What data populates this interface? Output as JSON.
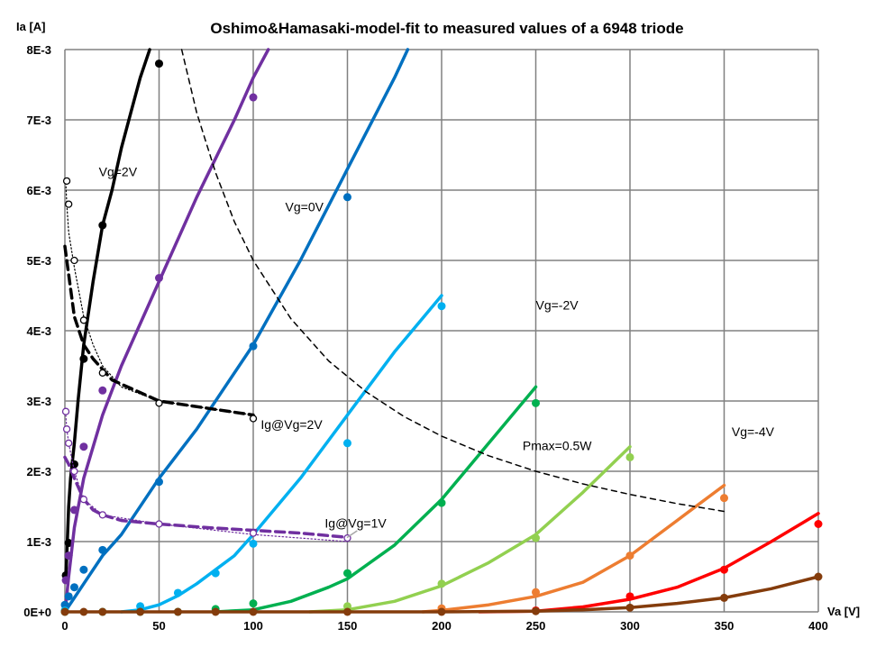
{
  "chart_data": {
    "type": "scatter",
    "title": "Oshimo&Hamasaki-model-fit to measured values of a 6948 triode",
    "xlabel": "Va [V]",
    "ylabel": "Ia [A]",
    "xlim": [
      0,
      400
    ],
    "ylim": [
      0,
      0.008
    ],
    "x_ticks": [
      "0",
      "50",
      "100",
      "150",
      "200",
      "250",
      "300",
      "350",
      "400"
    ],
    "x_tick_values": [
      0,
      50,
      100,
      150,
      200,
      250,
      300,
      350,
      400
    ],
    "y_ticks": [
      "0E+0",
      "1E-3",
      "2E-3",
      "3E-3",
      "4E-3",
      "5E-3",
      "6E-3",
      "7E-3",
      "8E-3"
    ],
    "y_tick_values": [
      0,
      0.001,
      0.002,
      0.003,
      0.004,
      0.005,
      0.006,
      0.007,
      0.008
    ],
    "grid": true,
    "annotations": [
      {
        "text": "Vg=2V",
        "x": 18,
        "y": 0.0062
      },
      {
        "text": "Vg=0V",
        "x": 117,
        "y": 0.0057
      },
      {
        "text": "Vg=-2V",
        "x": 250,
        "y": 0.0043
      },
      {
        "text": "Vg=-4V",
        "x": 354,
        "y": 0.0025
      },
      {
        "text": "Pmax=0.5W",
        "x": 243,
        "y": 0.0023
      },
      {
        "text": "Ig@Vg=2V",
        "x": 104,
        "y": 0.0026
      },
      {
        "text": "Ig@Vg=1V",
        "x": 138,
        "y": 0.0012
      }
    ],
    "series": [
      {
        "color": "#000000",
        "width": 3.5,
        "curve": [
          [
            0.5,
            0.00045
          ],
          [
            1,
            0.0008
          ],
          [
            2,
            0.0015
          ],
          [
            3,
            0.0019
          ],
          [
            5,
            0.0024
          ],
          [
            7,
            0.003
          ],
          [
            10,
            0.0038
          ],
          [
            15,
            0.0047
          ],
          [
            20,
            0.0055
          ],
          [
            25,
            0.006
          ],
          [
            30,
            0.0066
          ],
          [
            35,
            0.0071
          ],
          [
            40,
            0.0076
          ],
          [
            45,
            0.008
          ]
        ],
        "points": [
          [
            0.5,
            0.00052
          ],
          [
            2,
            0.00098
          ],
          [
            5,
            0.0021
          ],
          [
            10,
            0.0036
          ],
          [
            20,
            0.0055
          ],
          [
            50,
            0.0078
          ]
        ]
      },
      {
        "color": "#7030A0",
        "width": 3.5,
        "curve": [
          [
            0.5,
            0.0001
          ],
          [
            2,
            0.0005
          ],
          [
            5,
            0.0012
          ],
          [
            10,
            0.0019
          ],
          [
            20,
            0.0028
          ],
          [
            30,
            0.0035
          ],
          [
            50,
            0.0047
          ],
          [
            70,
            0.0059
          ],
          [
            90,
            0.007
          ],
          [
            100,
            0.0076
          ],
          [
            108,
            0.008
          ]
        ],
        "points": [
          [
            0.5,
            0.00045
          ],
          [
            2,
            0.0008
          ],
          [
            5,
            0.00145
          ],
          [
            10,
            0.00235
          ],
          [
            20,
            0.00315
          ],
          [
            50,
            0.00475
          ],
          [
            100,
            0.00732
          ]
        ]
      },
      {
        "color": "#0070C0",
        "width": 3.5,
        "curve": [
          [
            0,
            0
          ],
          [
            5,
            0.0002
          ],
          [
            10,
            0.0004
          ],
          [
            20,
            0.0008
          ],
          [
            30,
            0.0011
          ],
          [
            50,
            0.0019
          ],
          [
            70,
            0.0026
          ],
          [
            100,
            0.0038
          ],
          [
            125,
            0.005
          ],
          [
            150,
            0.0063
          ],
          [
            175,
            0.0076
          ],
          [
            182,
            0.008
          ]
        ],
        "points": [
          [
            0,
            0.0001
          ],
          [
            2,
            0.00022
          ],
          [
            5,
            0.00035
          ],
          [
            10,
            0.0006
          ],
          [
            20,
            0.00088
          ],
          [
            50,
            0.00185
          ],
          [
            100,
            0.00378
          ],
          [
            150,
            0.0059
          ]
        ]
      },
      {
        "color": "#00B0F0",
        "width": 3.5,
        "curve": [
          [
            30,
            0
          ],
          [
            40,
            3e-05
          ],
          [
            50,
            0.0001
          ],
          [
            60,
            0.00023
          ],
          [
            70,
            0.0004
          ],
          [
            80,
            0.0006
          ],
          [
            90,
            0.0008
          ],
          [
            100,
            0.0011
          ],
          [
            125,
            0.0019
          ],
          [
            150,
            0.0028
          ],
          [
            175,
            0.0037
          ],
          [
            200,
            0.0045
          ]
        ],
        "points": [
          [
            0,
            2e-05
          ],
          [
            40,
            8e-05
          ],
          [
            60,
            0.00027
          ],
          [
            80,
            0.00055
          ],
          [
            100,
            0.00097
          ],
          [
            150,
            0.0024
          ],
          [
            200,
            0.00435
          ]
        ]
      },
      {
        "color": "#00B050",
        "width": 3.5,
        "curve": [
          [
            80,
            0
          ],
          [
            100,
            3e-05
          ],
          [
            120,
            0.00015
          ],
          [
            140,
            0.00035
          ],
          [
            150,
            0.00047
          ],
          [
            175,
            0.00095
          ],
          [
            200,
            0.0016
          ],
          [
            225,
            0.0024
          ],
          [
            250,
            0.0032
          ]
        ],
        "points": [
          [
            0,
            0
          ],
          [
            20,
            0
          ],
          [
            40,
            0
          ],
          [
            60,
            0
          ],
          [
            80,
            4e-05
          ],
          [
            100,
            0.00012
          ],
          [
            150,
            0.00055
          ],
          [
            200,
            0.00155
          ],
          [
            250,
            0.00297
          ]
        ]
      },
      {
        "color": "#92D050",
        "width": 3.5,
        "curve": [
          [
            130,
            0
          ],
          [
            150,
            3e-05
          ],
          [
            175,
            0.00015
          ],
          [
            200,
            0.00037
          ],
          [
            225,
            0.0007
          ],
          [
            250,
            0.0011
          ],
          [
            275,
            0.0017
          ],
          [
            300,
            0.00235
          ]
        ],
        "points": [
          [
            150,
            8e-05
          ],
          [
            200,
            0.0004
          ],
          [
            250,
            0.00105
          ],
          [
            300,
            0.0022
          ]
        ]
      },
      {
        "color": "#ED7D31",
        "width": 3.5,
        "curve": [
          [
            190,
            0
          ],
          [
            200,
            2e-05
          ],
          [
            225,
            0.0001
          ],
          [
            250,
            0.00022
          ],
          [
            275,
            0.00042
          ],
          [
            300,
            0.0008
          ],
          [
            325,
            0.0013
          ],
          [
            350,
            0.0018
          ]
        ],
        "points": [
          [
            200,
            5e-05
          ],
          [
            250,
            0.00028
          ],
          [
            300,
            0.0008
          ],
          [
            350,
            0.00162
          ]
        ]
      },
      {
        "color": "#FF0000",
        "width": 3.5,
        "curve": [
          [
            220,
            0
          ],
          [
            250,
            1e-05
          ],
          [
            275,
            7e-05
          ],
          [
            300,
            0.00018
          ],
          [
            325,
            0.00035
          ],
          [
            350,
            0.00062
          ],
          [
            375,
            0.001
          ],
          [
            400,
            0.0014
          ]
        ],
        "points": [
          [
            250,
            2e-05
          ],
          [
            300,
            0.00022
          ],
          [
            350,
            0.0006
          ],
          [
            400,
            0.00125
          ]
        ]
      },
      {
        "color": "#843C0C",
        "width": 3.5,
        "curve": [
          [
            0,
            0
          ],
          [
            100,
            0
          ],
          [
            200,
            0
          ],
          [
            250,
            1e-05
          ],
          [
            275,
            3e-05
          ],
          [
            300,
            6e-05
          ],
          [
            325,
            0.00012
          ],
          [
            350,
            0.0002
          ],
          [
            375,
            0.00033
          ],
          [
            400,
            0.0005
          ]
        ],
        "points": [
          [
            0,
            0
          ],
          [
            10,
            0
          ],
          [
            20,
            0
          ],
          [
            40,
            0
          ],
          [
            60,
            0
          ],
          [
            80,
            0
          ],
          [
            100,
            0
          ],
          [
            150,
            0
          ],
          [
            200,
            0
          ],
          [
            250,
            1e-05
          ],
          [
            300,
            6e-05
          ],
          [
            350,
            0.0002
          ],
          [
            400,
            0.0005
          ]
        ]
      },
      {
        "color": "#000000",
        "width": 1.5,
        "dash": "6,5",
        "curve": [
          [
            62,
            0.008
          ],
          [
            70,
            0.0071
          ],
          [
            80,
            0.00625
          ],
          [
            90,
            0.00555
          ],
          [
            100,
            0.005
          ],
          [
            120,
            0.00417
          ],
          [
            140,
            0.00357
          ],
          [
            160,
            0.00313
          ],
          [
            180,
            0.00278
          ],
          [
            200,
            0.0025
          ],
          [
            225,
            0.00222
          ],
          [
            250,
            0.002
          ],
          [
            275,
            0.00182
          ],
          [
            300,
            0.00167
          ],
          [
            325,
            0.00154
          ],
          [
            350,
            0.00143
          ]
        ]
      },
      {
        "color": "#000000",
        "width": 3.5,
        "dash": "10,6",
        "curve": [
          [
            0,
            0.0052
          ],
          [
            2,
            0.0048
          ],
          [
            5,
            0.0042
          ],
          [
            10,
            0.0038
          ],
          [
            15,
            0.0036
          ],
          [
            25,
            0.0033
          ],
          [
            50,
            0.003
          ],
          [
            75,
            0.0029
          ],
          [
            100,
            0.0028
          ]
        ]
      },
      {
        "color": "#000000",
        "width": 1.2,
        "dash": "1.5,2.5",
        "hollow": true,
        "curve": [
          [
            0.5,
            0.0061
          ],
          [
            1,
            0.0058
          ],
          [
            2,
            0.0054
          ],
          [
            5,
            0.0049
          ],
          [
            10,
            0.0042
          ],
          [
            15,
            0.0038
          ],
          [
            20,
            0.0035
          ],
          [
            30,
            0.0032
          ],
          [
            50,
            0.003
          ],
          [
            75,
            0.0029
          ],
          [
            100,
            0.0028
          ]
        ],
        "points": [
          [
            1,
            0.00613
          ],
          [
            2,
            0.0058
          ],
          [
            5,
            0.005
          ],
          [
            10,
            0.00415
          ],
          [
            20,
            0.0034
          ],
          [
            50,
            0.00297
          ],
          [
            100,
            0.00275
          ]
        ]
      },
      {
        "color": "#7030A0",
        "width": 3.5,
        "dash": "10,6",
        "curve": [
          [
            0,
            0.0022
          ],
          [
            2,
            0.0021
          ],
          [
            5,
            0.0019
          ],
          [
            10,
            0.0016
          ],
          [
            15,
            0.00145
          ],
          [
            20,
            0.00138
          ],
          [
            30,
            0.0013
          ],
          [
            50,
            0.00125
          ],
          [
            75,
            0.0012
          ],
          [
            100,
            0.00116
          ],
          [
            125,
            0.00112
          ],
          [
            150,
            0.00106
          ]
        ]
      },
      {
        "color": "#7030A0",
        "width": 1.2,
        "dash": "1.5,2.5",
        "hollow": true,
        "curve": [
          [
            0.5,
            0.0028
          ],
          [
            1,
            0.0026
          ],
          [
            2,
            0.0024
          ],
          [
            5,
            0.002
          ],
          [
            10,
            0.0016
          ],
          [
            20,
            0.00138
          ],
          [
            50,
            0.00125
          ],
          [
            100,
            0.0011
          ],
          [
            150,
            0.001
          ]
        ],
        "points": [
          [
            0.5,
            0.00285
          ],
          [
            1,
            0.0026
          ],
          [
            2,
            0.0024
          ],
          [
            5,
            0.002
          ],
          [
            10,
            0.0016
          ],
          [
            20,
            0.00138
          ],
          [
            50,
            0.00125
          ],
          [
            100,
            0.00112
          ],
          [
            150,
            0.00105
          ]
        ]
      },
      {
        "color": "#A6A6A6",
        "width": 1.5,
        "curve": [
          [
            150,
            0.00106
          ],
          [
            155,
            0.00115
          ]
        ]
      }
    ]
  }
}
